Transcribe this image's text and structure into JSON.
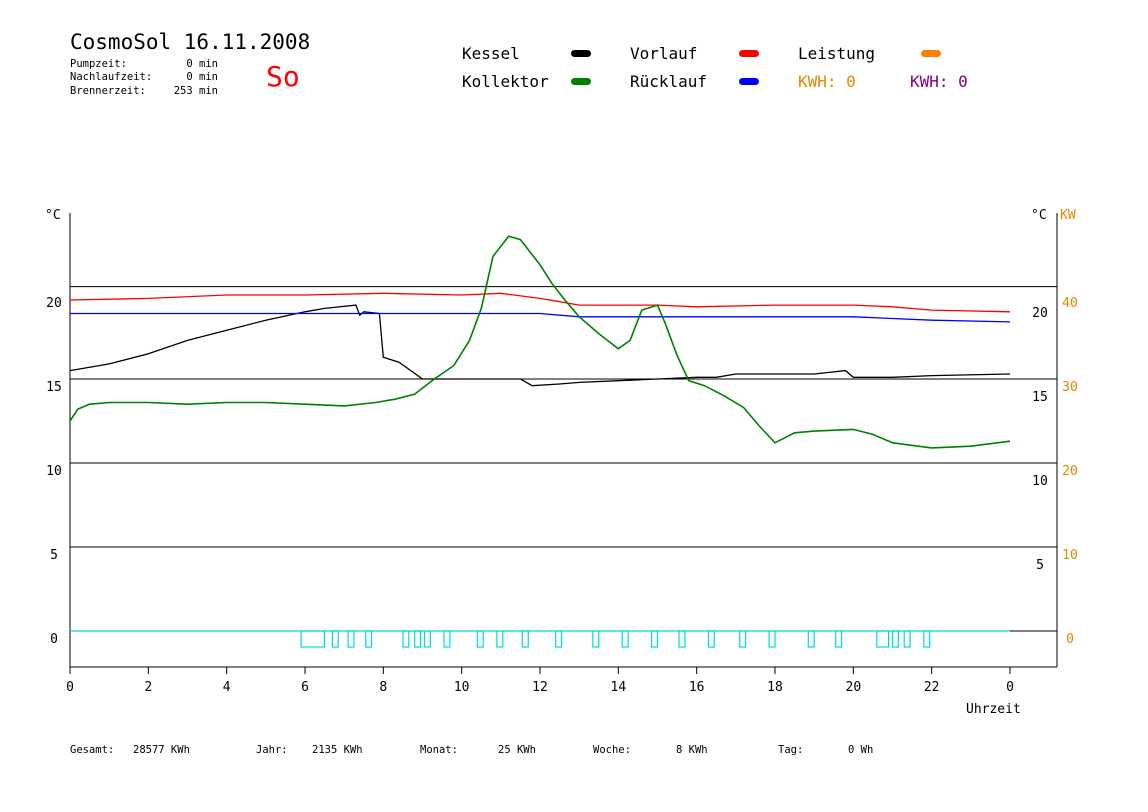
{
  "header": {
    "title": "CosmoSol 16.11.2008",
    "day": "So",
    "stats": [
      {
        "label": "Pumpzeit:",
        "value": "0 min"
      },
      {
        "label": "Nachlaufzeit:",
        "value": "0 min"
      },
      {
        "label": "Brennerzeit:",
        "value": "253 min"
      }
    ]
  },
  "legend": {
    "items": [
      {
        "label": "Kessel",
        "color": "#000000"
      },
      {
        "label": "Vorlauf",
        "color": "#ff0000"
      },
      {
        "label": "Leistung",
        "color": "#ff8000"
      },
      {
        "label": "Kollektor",
        "color": "#008000"
      },
      {
        "label": "Rücklauf",
        "color": "#0000ff"
      }
    ],
    "kwh_orange": "KWH: 0",
    "kwh_purple": "KWH: 0"
  },
  "axes": {
    "left_unit": "°C",
    "right_unit": "°C",
    "power_unit": "KW",
    "xlabel": "Uhrzeit"
  },
  "footer": [
    {
      "label": "Gesamt:",
      "value": "28577 KWh"
    },
    {
      "label": "Jahr:",
      "value": "2135 KWh"
    },
    {
      "label": "Monat:",
      "value": "25 KWh"
    },
    {
      "label": "Woche:",
      "value": "8 KWh"
    },
    {
      "label": "Tag:",
      "value": "0 Wh"
    }
  ],
  "chart_data": {
    "type": "line",
    "xlabel": "Uhrzeit",
    "x_ticks": [
      "0",
      "2",
      "4",
      "6",
      "8",
      "10",
      "12",
      "14",
      "16",
      "18",
      "20",
      "22",
      "0"
    ],
    "xlim": [
      0,
      24
    ],
    "ylim": [
      -2,
      25
    ],
    "y_ticks_left": [
      "0",
      "5",
      "10",
      "15",
      "20"
    ],
    "y_ticks_right": [
      "5",
      "10",
      "15",
      "20"
    ],
    "y_ticks_power": [
      "0",
      "10",
      "20",
      "30",
      "40"
    ],
    "y_tick_values": [
      0,
      5,
      10,
      15,
      20
    ],
    "grid_y": [
      0,
      5,
      10,
      15,
      20.5
    ],
    "series": [
      {
        "name": "Kessel",
        "color": "#000000",
        "x": [
          0,
          1,
          2,
          3,
          4,
          5,
          6,
          6.5,
          7.3,
          7.4,
          7.5,
          7.9,
          8.0,
          8.4,
          9.0,
          9.5,
          10.5,
          11.5,
          11.8,
          12.5,
          13,
          14,
          15,
          16,
          16.5,
          17,
          18,
          19,
          19.8,
          20,
          21,
          22,
          24
        ],
        "y": [
          15.5,
          15.9,
          16.5,
          17.3,
          17.9,
          18.5,
          19.0,
          19.2,
          19.4,
          18.8,
          19.0,
          18.9,
          16.3,
          16.0,
          15.0,
          15.0,
          15.0,
          15.0,
          14.6,
          14.7,
          14.8,
          14.9,
          15.0,
          15.1,
          15.1,
          15.3,
          15.3,
          15.3,
          15.5,
          15.1,
          15.1,
          15.2,
          15.3
        ]
      },
      {
        "name": "Vorlauf",
        "color": "#ff0000",
        "x": [
          0,
          2,
          4,
          6,
          8,
          10,
          11,
          12,
          12.5,
          13,
          14,
          15,
          16,
          18,
          20,
          21,
          22,
          24
        ],
        "y": [
          19.7,
          19.8,
          20.0,
          20.0,
          20.1,
          20.0,
          20.1,
          19.8,
          19.6,
          19.4,
          19.4,
          19.4,
          19.3,
          19.4,
          19.4,
          19.3,
          19.1,
          19.0
        ]
      },
      {
        "name": "Rücklauf",
        "color": "#0000ff",
        "x": [
          0,
          2,
          4,
          6,
          8,
          10,
          11,
          12,
          13,
          14,
          16,
          18,
          20,
          22,
          24
        ],
        "y": [
          18.9,
          18.9,
          18.9,
          18.9,
          18.9,
          18.9,
          18.9,
          18.9,
          18.7,
          18.7,
          18.7,
          18.7,
          18.7,
          18.5,
          18.4
        ]
      },
      {
        "name": "Kollektor",
        "color": "#008000",
        "x": [
          0,
          0.2,
          0.5,
          1,
          2,
          3,
          4,
          5,
          6,
          7,
          7.8,
          8.3,
          8.8,
          9.3,
          9.8,
          10.2,
          10.5,
          10.8,
          11.2,
          11.5,
          11.8,
          12.0,
          12.3,
          12.6,
          13,
          13.5,
          14,
          14.3,
          14.6,
          15,
          15.2,
          15.5,
          15.8,
          16.2,
          16.7,
          17.2,
          17.6,
          18,
          18.5,
          19,
          20,
          20.5,
          21,
          22,
          23,
          24
        ],
        "y": [
          12.5,
          13.2,
          13.5,
          13.6,
          13.6,
          13.5,
          13.6,
          13.6,
          13.5,
          13.4,
          13.6,
          13.8,
          14.1,
          15.0,
          15.8,
          17.3,
          19.2,
          22.3,
          23.5,
          23.3,
          22.4,
          21.8,
          20.7,
          19.8,
          18.7,
          17.7,
          16.8,
          17.3,
          19.1,
          19.4,
          18.3,
          16.4,
          14.9,
          14.6,
          14.0,
          13.3,
          12.2,
          11.2,
          11.8,
          11.9,
          12.0,
          11.7,
          11.2,
          10.9,
          11.0,
          11.3
        ]
      }
    ],
    "pump_pulses": [
      [
        5.9,
        6.5
      ],
      [
        6.7,
        6.85
      ],
      [
        7.1,
        7.25
      ],
      [
        7.55,
        7.7
      ],
      [
        8.5,
        8.65
      ],
      [
        8.8,
        8.95
      ],
      [
        9.05,
        9.2
      ],
      [
        9.55,
        9.7
      ],
      [
        10.4,
        10.55
      ],
      [
        10.9,
        11.05
      ],
      [
        11.55,
        11.7
      ],
      [
        12.4,
        12.55
      ],
      [
        13.35,
        13.5
      ],
      [
        14.1,
        14.25
      ],
      [
        14.85,
        15.0
      ],
      [
        15.55,
        15.7
      ],
      [
        16.3,
        16.45
      ],
      [
        17.1,
        17.25
      ],
      [
        17.85,
        18.0
      ],
      [
        18.85,
        19.0
      ],
      [
        19.55,
        19.7
      ],
      [
        20.6,
        20.9
      ],
      [
        21.0,
        21.15
      ],
      [
        21.3,
        21.45
      ],
      [
        21.8,
        21.95
      ]
    ]
  }
}
